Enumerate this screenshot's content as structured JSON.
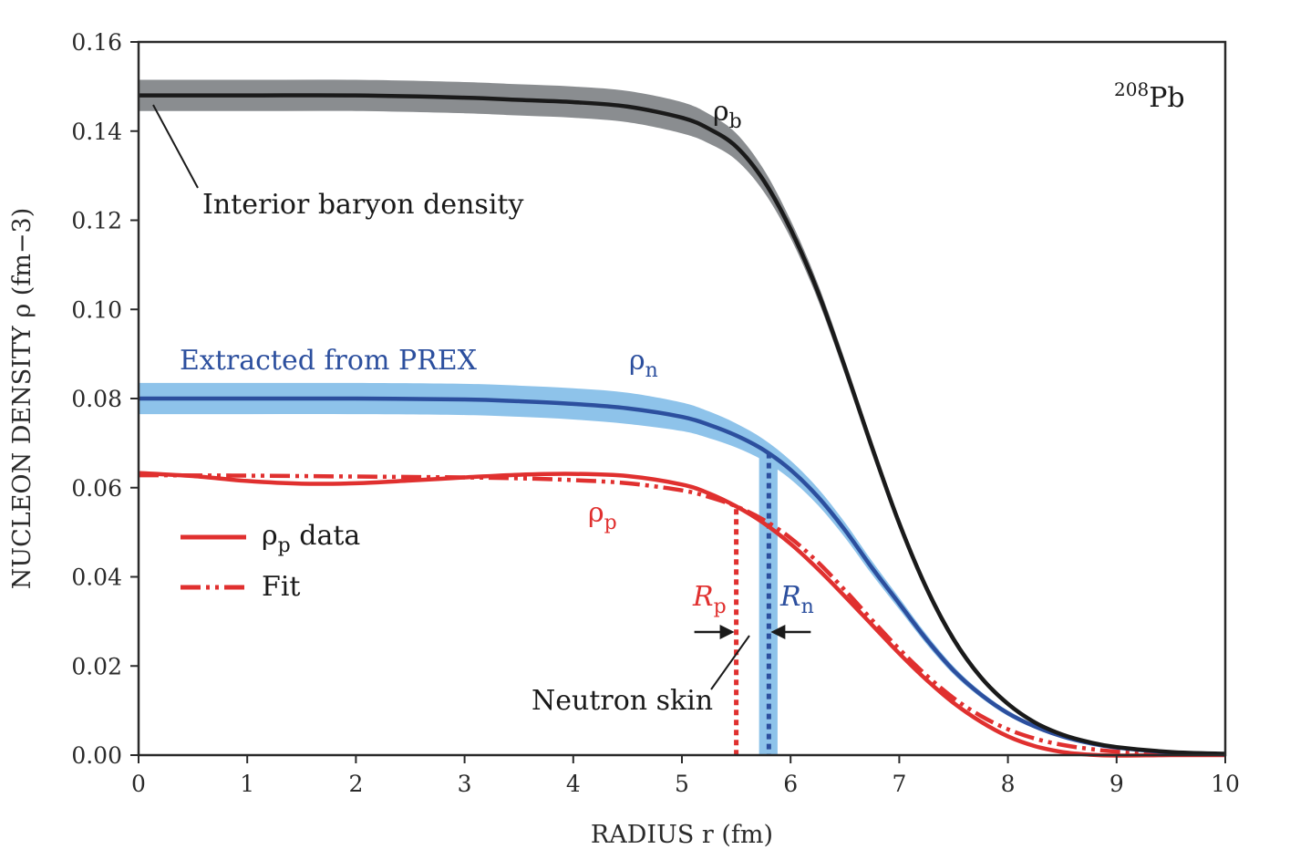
{
  "chart_data": {
    "type": "line",
    "title": "",
    "xlabel": "RADIUS r (fm)",
    "ylabel": "NUCLEON DENSITY ρ (fm−3)",
    "xlim": [
      0,
      10
    ],
    "ylim": [
      0,
      0.16
    ],
    "x_ticks": [
      0,
      1,
      2,
      3,
      4,
      5,
      6,
      7,
      8,
      9,
      10
    ],
    "x_tick_labels": [
      "0",
      "1",
      "2",
      "3",
      "4",
      "5",
      "6",
      "7",
      "8",
      "9",
      "10"
    ],
    "y_ticks": [
      0,
      0.02,
      0.04,
      0.06,
      0.08,
      0.1,
      0.12,
      0.14,
      0.16
    ],
    "y_tick_labels": [
      "0.00",
      "0.02",
      "0.04",
      "0.06",
      "0.08",
      "0.10",
      "0.12",
      "0.14",
      "0.16"
    ],
    "grid": false,
    "series": [
      {
        "id": "rho_b",
        "name": "ρb",
        "label_base": "ρ",
        "label_sub": "b",
        "color": "#1a1a1a",
        "band_color": "#8a8d90",
        "x": [
          0,
          1,
          2,
          3,
          3.5,
          4,
          4.5,
          5,
          5.25,
          5.5,
          5.75,
          6,
          6.25,
          6.5,
          6.75,
          7,
          7.25,
          7.5,
          7.75,
          8,
          8.25,
          8.5,
          8.75,
          9,
          9.5,
          10
        ],
        "y": [
          0.148,
          0.148,
          0.148,
          0.1475,
          0.147,
          0.1465,
          0.1455,
          0.143,
          0.1405,
          0.1365,
          0.129,
          0.118,
          0.104,
          0.087,
          0.069,
          0.052,
          0.0375,
          0.026,
          0.0175,
          0.0115,
          0.0073,
          0.0046,
          0.0029,
          0.0018,
          0.0007,
          0.0003
        ],
        "band_half_width": [
          0.0035,
          0.0035,
          0.0035,
          0.0035,
          0.0035,
          0.0035,
          0.0035,
          0.0035,
          0.0033,
          0.003,
          0.0025,
          0.002,
          0.0018,
          0.0016,
          0.0015,
          0.0013,
          0.0011,
          0.0009,
          0.0007,
          0.0006,
          0.0005,
          0.0004,
          0.0003,
          0.0002,
          0.0001,
          0.0001
        ]
      },
      {
        "id": "rho_n",
        "name": "ρn",
        "label_base": "ρ",
        "label_sub": "n",
        "color": "#2c4f9e",
        "band_color": "#8ec3ea",
        "x": [
          0,
          1,
          2,
          3,
          3.5,
          4,
          4.5,
          5,
          5.25,
          5.5,
          5.75,
          6,
          6.25,
          6.5,
          6.75,
          7,
          7.25,
          7.5,
          7.75,
          8,
          8.25,
          8.5,
          8.75,
          9,
          9.5,
          10
        ],
        "y": [
          0.08,
          0.08,
          0.08,
          0.0798,
          0.0794,
          0.0788,
          0.0778,
          0.0759,
          0.0741,
          0.0717,
          0.0685,
          0.064,
          0.058,
          0.0505,
          0.042,
          0.034,
          0.026,
          0.019,
          0.0136,
          0.0094,
          0.0064,
          0.0042,
          0.0027,
          0.0017,
          0.0006,
          0.0002
        ],
        "band_half_width": [
          0.0035,
          0.0035,
          0.0035,
          0.0035,
          0.0035,
          0.0035,
          0.0035,
          0.0032,
          0.003,
          0.0027,
          0.0024,
          0.0021,
          0.0019,
          0.0017,
          0.0015,
          0.0013,
          0.0011,
          0.0009,
          0.0007,
          0.0006,
          0.0005,
          0.0004,
          0.0003,
          0.0002,
          0.0001,
          0.0001
        ]
      },
      {
        "id": "rho_p_data",
        "name": "ρp data",
        "label_base": "ρ",
        "label_sub": "p",
        "color": "#e0302f",
        "style": "solid",
        "x": [
          0,
          0.5,
          1,
          1.5,
          2,
          2.5,
          3,
          3.5,
          4,
          4.5,
          5,
          5.25,
          5.5,
          5.75,
          6,
          6.25,
          6.5,
          6.75,
          7,
          7.25,
          7.5,
          7.75,
          8,
          8.25,
          8.5,
          8.75,
          9,
          9.5,
          10
        ],
        "y": [
          0.0633,
          0.0626,
          0.0615,
          0.0609,
          0.061,
          0.0616,
          0.0623,
          0.0629,
          0.0631,
          0.0626,
          0.0607,
          0.0587,
          0.0558,
          0.0521,
          0.0474,
          0.0418,
          0.0356,
          0.0292,
          0.0228,
          0.0169,
          0.0117,
          0.0075,
          0.0042,
          0.002,
          0.0007,
          0.0001,
          -0.0001,
          0.0,
          0.0
        ]
      },
      {
        "id": "rho_p_fit",
        "name": "Fit",
        "color": "#e0302f",
        "style": "dashdotdot",
        "x": [
          0,
          1,
          2,
          3,
          3.5,
          4,
          4.5,
          5,
          5.25,
          5.5,
          5.75,
          6,
          6.25,
          6.5,
          6.75,
          7,
          7.25,
          7.5,
          7.75,
          8,
          8.25,
          8.5,
          8.75,
          9,
          9.5,
          10
        ],
        "y": [
          0.0628,
          0.0627,
          0.0625,
          0.0623,
          0.0621,
          0.0617,
          0.061,
          0.0594,
          0.0579,
          0.0558,
          0.0528,
          0.0487,
          0.0433,
          0.037,
          0.0303,
          0.0238,
          0.0179,
          0.0128,
          0.0088,
          0.0058,
          0.0037,
          0.0023,
          0.0014,
          0.0008,
          0.0003,
          0.0001
        ]
      }
    ],
    "neutron_skin": {
      "R_p": 5.5,
      "R_n": 5.8,
      "R_n_band": [
        5.71,
        5.88
      ],
      "label": "Neutron skin",
      "R_p_label_base": "R",
      "R_p_label_sub": "p",
      "R_n_label_base": "R",
      "R_n_label_sub": "n"
    },
    "annotations": {
      "nucleus": "Pb",
      "nucleus_mass": "208",
      "interior": "Interior baryon density",
      "prex": "Extracted from PREX"
    },
    "legend": {
      "position": "lower-left",
      "entries": [
        {
          "series": "rho_p_data",
          "label_base": "ρ",
          "label_sub": "p",
          "label_rest": " data"
        },
        {
          "series": "rho_p_fit",
          "label": "Fit"
        }
      ]
    }
  }
}
